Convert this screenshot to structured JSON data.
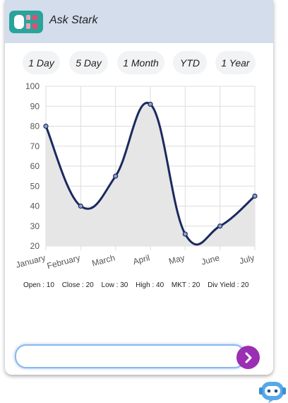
{
  "header": {
    "title": "Ask Stark",
    "accent": "#d3ddec"
  },
  "ranges": [
    {
      "label": "1 Day"
    },
    {
      "label": "5 Day"
    },
    {
      "label": "1 Month"
    },
    {
      "label": "YTD"
    },
    {
      "label": "1 Year"
    }
  ],
  "stats": {
    "open": "Open : 10",
    "close": "Close : 20",
    "low": "Low : 30",
    "high": "High : 40",
    "mkt": "MKT : 20",
    "div_yield": "Div Yield : 20"
  },
  "chat": {
    "placeholder": "",
    "send_color": "#9b2fb4"
  },
  "chart_data": {
    "type": "area",
    "categories": [
      "January",
      "February",
      "March",
      "April",
      "May",
      "June",
      "July"
    ],
    "values": [
      80,
      40,
      55,
      91,
      26,
      30,
      45
    ],
    "ylim": [
      20,
      100
    ],
    "yticks": [
      20,
      30,
      40,
      50,
      60,
      70,
      80,
      90,
      100
    ],
    "grid": true,
    "line_color": "#1a2a5e",
    "fill_color": "#e6e6e6"
  }
}
